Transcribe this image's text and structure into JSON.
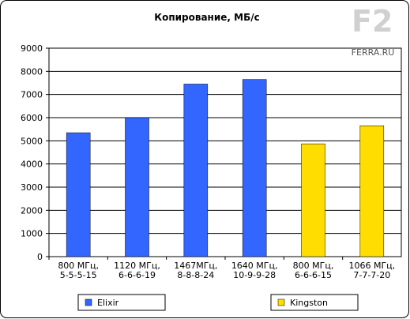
{
  "chart_data": {
    "type": "bar",
    "title": "Копирование,  МБ/с",
    "logo_text": "FERRA.RU",
    "categories": [
      "800 МГц, 5-5-5-15",
      "1120 МГц, 6-6-6-19",
      "1467МГц, 8-8-8-24",
      "1640 МГц, 10-9-9-28",
      "800 МГц, 6-6-6-15",
      "1066 МГц, 7-7-7-20"
    ],
    "series": [
      {
        "name": "Elixir",
        "color": "#3366ff",
        "values": [
          5350,
          6000,
          7450,
          7650,
          null,
          null
        ]
      },
      {
        "name": "Kingston",
        "color": "#ffdd00",
        "values": [
          null,
          null,
          null,
          null,
          4870,
          5650
        ]
      }
    ],
    "ylim": [
      0,
      9000
    ],
    "yticks": [
      0,
      1000,
      2000,
      3000,
      4000,
      5000,
      6000,
      7000,
      8000,
      9000
    ],
    "grid": true
  }
}
